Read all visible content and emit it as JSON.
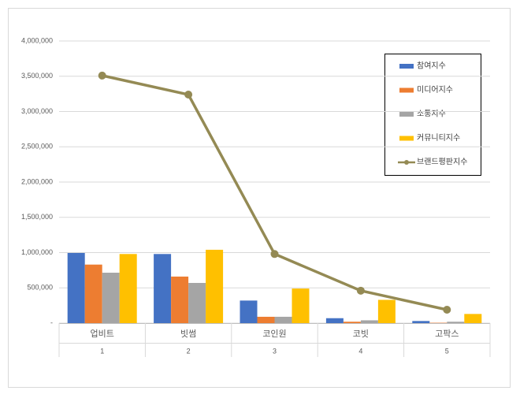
{
  "chart_data": {
    "type": "combo",
    "categories": [
      "업비트",
      "빗썸",
      "코인원",
      "코빗",
      "고팍스"
    ],
    "category_numbers": [
      "1",
      "2",
      "3",
      "4",
      "5"
    ],
    "ylim": [
      0,
      4000000
    ],
    "yticks": [
      {
        "value": 0,
        "label": "-"
      },
      {
        "value": 500000,
        "label": "500,000"
      },
      {
        "value": 1000000,
        "label": "1,000,000"
      },
      {
        "value": 1500000,
        "label": "1,500,000"
      },
      {
        "value": 2000000,
        "label": "2,000,000"
      },
      {
        "value": 2500000,
        "label": "2,500,000"
      },
      {
        "value": 3000000,
        "label": "3,000,000"
      },
      {
        "value": 3500000,
        "label": "3,500,000"
      },
      {
        "value": 4000000,
        "label": "4,000,000"
      }
    ],
    "grid": true,
    "legend": "upper-right",
    "series": [
      {
        "name": "참여지수",
        "type": "bar",
        "color": "#4472c4",
        "values": [
          995000,
          980000,
          320000,
          70000,
          30000
        ]
      },
      {
        "name": "미디어지수",
        "type": "bar",
        "color": "#ed7d31",
        "values": [
          830000,
          660000,
          90000,
          20000,
          5000
        ]
      },
      {
        "name": "소통지수",
        "type": "bar",
        "color": "#a5a5a5",
        "values": [
          715000,
          570000,
          90000,
          40000,
          20000
        ]
      },
      {
        "name": "커뮤니티지수",
        "type": "bar",
        "color": "#ffc000",
        "values": [
          980000,
          1040000,
          490000,
          330000,
          130000
        ]
      },
      {
        "name": "브랜드평판지수",
        "type": "line",
        "color": "#948a54",
        "values": [
          3510000,
          3240000,
          980000,
          460000,
          190000
        ]
      }
    ]
  }
}
